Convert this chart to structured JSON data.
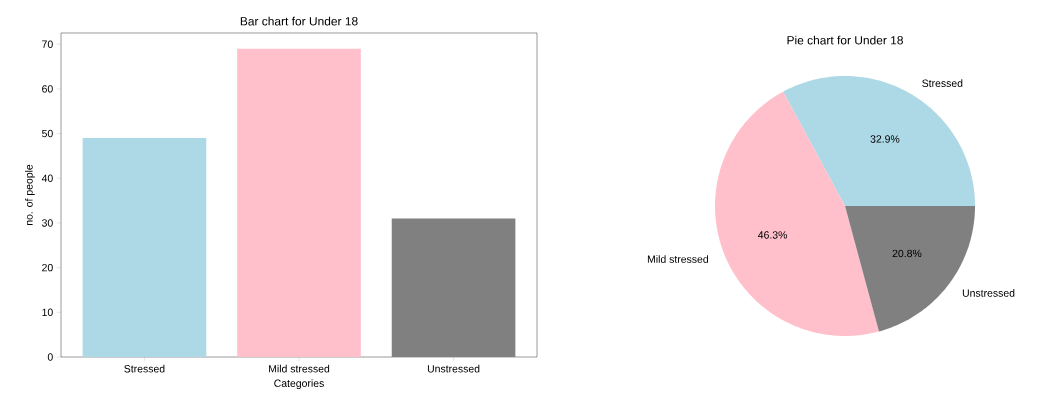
{
  "chart_data": [
    {
      "type": "bar",
      "title": "Bar chart for Under 18",
      "xlabel": "Categories",
      "ylabel": "no. of people",
      "categories": [
        "Stressed",
        "Mild stressed",
        "Unstressed"
      ],
      "values": [
        49,
        69,
        31
      ],
      "colors": [
        "#add8e6",
        "#ffc0cb",
        "#808080"
      ],
      "ylim": [
        0,
        72.5
      ],
      "yticks": [
        0,
        10,
        20,
        30,
        40,
        50,
        60,
        70
      ]
    },
    {
      "type": "pie",
      "title": "Pie chart for Under 18",
      "categories": [
        "Stressed",
        "Mild stressed",
        "Unstressed"
      ],
      "values": [
        32.9,
        46.3,
        20.8
      ],
      "colors": [
        "#add8e6",
        "#ffc0cb",
        "#808080"
      ],
      "value_labels": [
        "32.9%",
        "46.3%",
        "20.8%"
      ]
    }
  ]
}
